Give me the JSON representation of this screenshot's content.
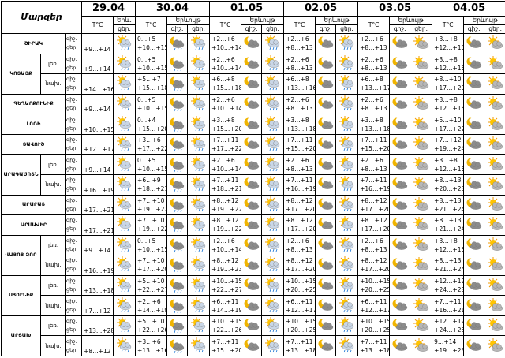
{
  "header": {
    "region_label": "Մարզեր",
    "dates": [
      "29.04",
      "30.04",
      "01.05",
      "02.05",
      "03.05",
      "04.05"
    ],
    "temp_label": "T°C",
    "first_phen_label": "Երև.",
    "phen_label": "Երևույթ",
    "night_label": "գիշ.",
    "day_label": "ցեր."
  },
  "rows": [
    {
      "region": "ՇԻՐԱԿ",
      "parts": [
        {
          "day0": "+9…+14",
          "temps": [
            [
              "0…+5",
              "+10…+15"
            ],
            [
              "+2…+6",
              "+10…+14"
            ],
            [
              "+2…+6",
              "+8…+13"
            ],
            [
              "+2…+6",
              "+8…+13"
            ],
            [
              "+3…+8",
              "+12…+16"
            ]
          ]
        }
      ]
    },
    {
      "region": "ԿՈՏԱՅՔ",
      "parts": [
        {
          "sub": "լեռ.",
          "day0": "+9…+14",
          "temps": [
            [
              "0…+5",
              "+10…+15"
            ],
            [
              "+2…+6",
              "+10…+14"
            ],
            [
              "+2…+6",
              "+8…+13"
            ],
            [
              "+2…+6",
              "+8…+13"
            ],
            [
              "+3…+8",
              "+12…+16"
            ]
          ]
        },
        {
          "sub": "նախ.",
          "day0": "+14…+16",
          "temps": [
            [
              "+5…+7",
              "+15…+18"
            ],
            [
              "+6…+8",
              "+15…+18"
            ],
            [
              "+6…+8",
              "+13…+16"
            ],
            [
              "+6…+8",
              "+13…+17"
            ],
            [
              "+8…+10",
              "+17…+20"
            ]
          ]
        }
      ]
    },
    {
      "region": "ԳԵՂԱՐՔՈՒՆԻՔ",
      "parts": [
        {
          "day0": "+9…+14",
          "temps": [
            [
              "0…+5",
              "+10…+15"
            ],
            [
              "+2…+6",
              "+10…+14"
            ],
            [
              "+2…+6",
              "+8…+13"
            ],
            [
              "+2…+6",
              "+8…+13"
            ],
            [
              "+3…+8",
              "+12…+16"
            ]
          ]
        }
      ]
    },
    {
      "region": "ԼՈՌԻ",
      "parts": [
        {
          "day0": "+10…+15",
          "temps": [
            [
              "0…+4",
              "+15…+20"
            ],
            [
              "+3…+8",
              "+15…+20"
            ],
            [
              "+3…+8",
              "+13…+18"
            ],
            [
              "+3…+8",
              "+13…+18"
            ],
            [
              "+5…+10",
              "+17…+22"
            ]
          ]
        }
      ]
    },
    {
      "region": "ՏԱՎՈՒՇ",
      "parts": [
        {
          "day0": "+12…+17",
          "temps": [
            [
              "+3…+6",
              "+17…+22"
            ],
            [
              "+7…+11",
              "+17…+22"
            ],
            [
              "+7…+11",
              "+15…+20"
            ],
            [
              "+7…+11",
              "+15…+20"
            ],
            [
              "+7…+12",
              "+19…+24"
            ]
          ]
        }
      ]
    },
    {
      "region": "ԱՐԱԳԱԾՈՏՆ",
      "parts": [
        {
          "sub": "լեռ.",
          "day0": "+9…+14",
          "temps": [
            [
              "0…+5",
              "+10…+15"
            ],
            [
              "+2…+6",
              "+10…+14"
            ],
            [
              "+2…+6",
              "+8…+13"
            ],
            [
              "+2…+6",
              "+8…+13"
            ],
            [
              "+3…+8",
              "+12…+16"
            ]
          ]
        },
        {
          "sub": "նախ.",
          "day0": "+16…+19",
          "temps": [
            [
              "+6…+9",
              "+18…+21"
            ],
            [
              "+7…+11",
              "+18…+21"
            ],
            [
              "+7…+11",
              "+16…+19"
            ],
            [
              "+7…+11",
              "+16…+19"
            ],
            [
              "+8…+13",
              "+20…+23"
            ]
          ]
        }
      ]
    },
    {
      "region": "ԱՐԱՐԱՏ",
      "parts": [
        {
          "day0": "+17…+21",
          "temps": [
            [
              "+7…+10",
              "+19…+22"
            ],
            [
              "+8…+12",
              "+19…+22"
            ],
            [
              "+8…+12",
              "+17…+20"
            ],
            [
              "+8…+12",
              "+17…+20"
            ],
            [
              "+8…+13",
              "+21…+24"
            ]
          ]
        }
      ]
    },
    {
      "region": "ԱՐՄԱՎԻՐ",
      "parts": [
        {
          "day0": "+17…+21",
          "temps": [
            [
              "+7…+10",
              "+19…+22"
            ],
            [
              "+8…+12",
              "+19…+22"
            ],
            [
              "+8…+12",
              "+17…+20"
            ],
            [
              "+8…+12",
              "+17…+20"
            ],
            [
              "+8…+13",
              "+21…+24"
            ]
          ]
        }
      ]
    },
    {
      "region": "ՎԱՅՈՑ ՁՈՐ",
      "parts": [
        {
          "sub": "լեռ.",
          "day0": "+9…+14",
          "temps": [
            [
              "0…+5",
              "+10…+15"
            ],
            [
              "+2…+6",
              "+10…+14"
            ],
            [
              "+2…+6",
              "+8…+13"
            ],
            [
              "+2…+6",
              "+8…+13"
            ],
            [
              "+3…+8",
              "+12…+16"
            ]
          ]
        },
        {
          "sub": "նախ.",
          "day0": "+16…+19",
          "temps": [
            [
              "+7…+10",
              "+17…+20"
            ],
            [
              "+8…+12",
              "+19…+23"
            ],
            [
              "+8…+12",
              "+17…+20"
            ],
            [
              "+8…+12",
              "+17…+20"
            ],
            [
              "+8…+13",
              "+21…+24"
            ]
          ]
        }
      ]
    },
    {
      "region": "ՍՅՈՒՆԻՔ",
      "parts": [
        {
          "sub": "լեռ.",
          "day0": "+13…+18",
          "temps": [
            [
              "+5…+10",
              "+22…+27"
            ],
            [
              "+10…+15",
              "+22…+27"
            ],
            [
              "+10…+15",
              "+20…+25"
            ],
            [
              "+10…+15",
              "+20…+25"
            ],
            [
              "+12…+17",
              "+24…+28"
            ]
          ]
        },
        {
          "sub": "նախ.",
          "day0": "+7…+12",
          "temps": [
            [
              "+2…+6",
              "+14…+19"
            ],
            [
              "+6…+11",
              "+14…+19"
            ],
            [
              "+6…+11",
              "+12…+17"
            ],
            [
              "+6…+11",
              "+12…+17"
            ],
            [
              "+7…+11",
              "+16…+21"
            ]
          ]
        }
      ]
    },
    {
      "region": "ԱՐՑԱԽ",
      "parts": [
        {
          "sub": "լեռ.",
          "day0": "+13…+28",
          "temps": [
            [
              "+5…+10",
              "+22…+26"
            ],
            [
              "+10…+15",
              "+22…+26"
            ],
            [
              "+10…+15",
              "+20…+25"
            ],
            [
              "+10…+15",
              "+20…+25"
            ],
            [
              "+12…+17",
              "+24…+28"
            ]
          ]
        },
        {
          "sub": "նախ.",
          "day0": "+8…+12",
          "temps": [
            [
              "+3…+6",
              "+13…+16"
            ],
            [
              "+7…+11",
              "+15…+20"
            ],
            [
              "+7…+11",
              "+13…+18"
            ],
            [
              "+7…+11",
              "+13…+18"
            ],
            [
              "9…+14",
              "+19…+23"
            ]
          ]
        }
      ]
    }
  ]
}
